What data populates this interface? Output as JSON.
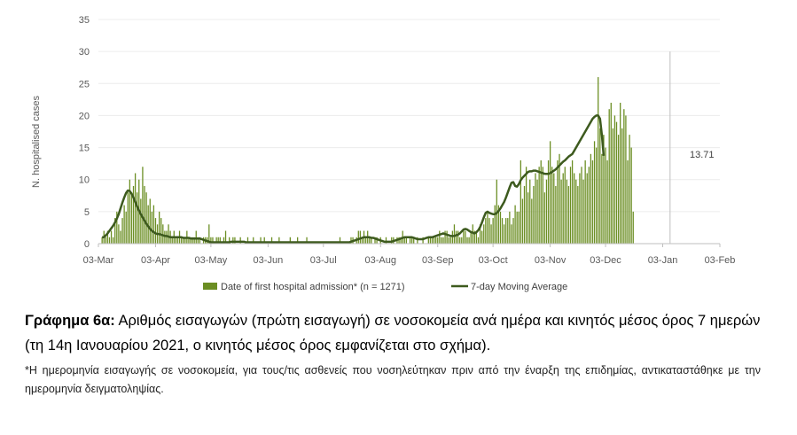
{
  "chart_data": {
    "type": "bar+line",
    "ylabel": "N. hospitalised cases",
    "ylim": [
      0,
      35
    ],
    "yticks": [
      0,
      5,
      10,
      15,
      20,
      25,
      30,
      35
    ],
    "x_start": "2020-03-03",
    "x_end": "2021-02-03",
    "xticks": [
      {
        "date": "2020-03-03",
        "label": "03-Mar"
      },
      {
        "date": "2020-04-03",
        "label": "03-Apr"
      },
      {
        "date": "2020-05-03",
        "label": "03-May"
      },
      {
        "date": "2020-06-03",
        "label": "03-Jun"
      },
      {
        "date": "2020-07-03",
        "label": "03-Jul"
      },
      {
        "date": "2020-08-03",
        "label": "03-Aug"
      },
      {
        "date": "2020-09-03",
        "label": "03-Sep"
      },
      {
        "date": "2020-10-03",
        "label": "03-Oct"
      },
      {
        "date": "2020-11-03",
        "label": "03-Nov"
      },
      {
        "date": "2020-12-03",
        "label": "03-Dec"
      },
      {
        "date": "2021-01-03",
        "label": "03-Jan"
      },
      {
        "date": "2021-02-03",
        "label": "03-Feb"
      }
    ],
    "vline_date": "2021-01-07",
    "bar_series_name": "Date of first hospital admission* (n = 1271)",
    "line_series_name": "7-day Moving Average",
    "moving_average_label": "13.71",
    "colors": {
      "bar": "#6b8e23",
      "line": "#3d5a1e",
      "vline": "#bfbfbf",
      "axis": "#bfbfbf"
    },
    "bars_start_date": "2020-03-05",
    "bars": [
      1,
      2,
      1,
      2,
      1,
      2,
      1,
      4,
      5,
      3,
      2,
      4,
      6,
      5,
      8,
      10,
      8,
      9,
      11,
      8,
      10,
      7,
      12,
      9,
      8,
      6,
      7,
      5,
      6,
      4,
      3,
      5,
      4,
      3,
      2,
      2,
      3,
      2,
      1,
      2,
      1,
      1,
      2,
      1,
      1,
      1,
      2,
      1,
      1,
      1,
      1,
      2,
      1,
      1,
      0,
      1,
      1,
      1,
      3,
      1,
      1,
      0,
      1,
      1,
      1,
      0,
      1,
      2,
      0,
      1,
      0,
      1,
      1,
      0,
      0,
      1,
      0,
      0,
      0,
      1,
      0,
      0,
      1,
      0,
      0,
      0,
      1,
      0,
      1,
      0,
      0,
      0,
      1,
      0,
      0,
      0,
      1,
      0,
      0,
      0,
      0,
      0,
      1,
      0,
      0,
      0,
      1,
      0,
      0,
      0,
      0,
      1,
      0,
      0,
      0,
      0,
      0,
      0,
      0,
      0,
      0,
      0,
      0,
      0,
      0,
      0,
      0,
      0,
      0,
      1,
      0,
      0,
      0,
      0,
      0,
      1,
      1,
      0,
      1,
      2,
      2,
      1,
      2,
      1,
      2,
      1,
      1,
      0,
      1,
      1,
      0,
      1,
      0,
      0,
      1,
      0,
      0,
      1,
      1,
      0,
      1,
      1,
      1,
      2,
      1,
      1,
      0,
      1,
      1,
      1,
      0,
      1,
      0,
      0,
      1,
      0,
      0,
      1,
      1,
      1,
      1,
      1,
      1,
      2,
      1,
      1,
      2,
      2,
      1,
      1,
      2,
      3,
      2,
      2,
      1,
      1,
      2,
      2,
      1,
      1,
      2,
      3,
      2,
      2,
      1,
      3,
      2,
      3,
      4,
      5,
      4,
      3,
      4,
      6,
      10,
      6,
      5,
      4,
      3,
      4,
      4,
      5,
      3,
      4,
      6,
      5,
      5,
      13,
      7,
      9,
      12,
      8,
      10,
      7,
      9,
      11,
      10,
      12,
      13,
      12,
      8,
      10,
      13,
      16,
      12,
      11,
      9,
      13,
      14,
      10,
      11,
      12,
      10,
      9,
      12,
      13,
      11,
      10,
      9,
      11,
      12,
      10,
      13,
      11,
      12,
      14,
      13,
      16,
      15,
      26,
      18,
      14,
      17,
      15,
      13,
      21,
      22,
      18,
      20,
      19,
      17,
      22,
      18,
      21,
      20,
      13,
      17,
      15,
      5
    ],
    "moving_average": [
      1,
      1,
      1.3,
      1.6,
      2,
      2.4,
      2.8,
      3.3,
      3.9,
      4.6,
      5.5,
      6.4,
      7.2,
      7.9,
      8.3,
      8.2,
      7.8,
      7.2,
      6.5,
      5.8,
      5.2,
      4.6,
      4.1,
      3.6,
      3.1,
      2.7,
      2.3,
      2,
      1.8,
      1.6,
      1.5,
      1.5,
      1.4,
      1.3,
      1.2,
      1.2,
      1.1,
      1,
      1,
      1,
      1,
      1,
      1,
      1,
      0.9,
      0.9,
      0.9,
      0.9,
      0.8,
      0.8,
      0.8,
      0.8,
      0.8,
      0.8,
      0.7,
      0.6,
      0.5,
      0.4,
      0.3,
      0.2,
      0.2,
      0.2,
      0.2,
      0.2,
      0.2,
      0.2,
      0.2,
      0.2,
      0.2,
      0.2,
      0.3,
      0.3,
      0.3,
      0.3,
      0.3,
      0.3,
      0.3,
      0.3,
      0.2,
      0.2,
      0.2,
      0.2,
      0.2,
      0.2,
      0.2,
      0.2,
      0.2,
      0.2,
      0.2,
      0.2,
      0.2,
      0.2,
      0.2,
      0.2,
      0.2,
      0.2,
      0.2,
      0.2,
      0.2,
      0.2,
      0.2,
      0.2,
      0.2,
      0.2,
      0.2,
      0.2,
      0.2,
      0.2,
      0.2,
      0.2,
      0.2,
      0.2,
      0.2,
      0.2,
      0.2,
      0.2,
      0.2,
      0.2,
      0.2,
      0.2,
      0.2,
      0.2,
      0.2,
      0.2,
      0.2,
      0.2,
      0.2,
      0.2,
      0.2,
      0.2,
      0.2,
      0.2,
      0.2,
      0.2,
      0.2,
      0.3,
      0.4,
      0.5,
      0.6,
      0.7,
      0.8,
      0.9,
      1,
      1,
      1,
      1,
      0.9,
      0.9,
      0.8,
      0.7,
      0.6,
      0.5,
      0.4,
      0.3,
      0.3,
      0.3,
      0.3,
      0.3,
      0.4,
      0.5,
      0.6,
      0.7,
      0.8,
      0.9,
      1,
      1,
      1,
      1,
      1,
      0.9,
      0.8,
      0.7,
      0.7,
      0.7,
      0.7,
      0.8,
      0.9,
      1,
      1,
      1,
      1.1,
      1.2,
      1.3,
      1.4,
      1.5,
      1.6,
      1.5,
      1.4,
      1.3,
      1.2,
      1.2,
      1.2,
      1.3,
      1.4,
      1.6,
      1.9,
      2.2,
      2.3,
      2.2,
      2,
      1.8,
      1.7,
      1.6,
      1.8,
      2.1,
      2.6,
      3.3,
      4.1,
      4.8,
      5,
      4.8,
      4.7,
      4.6,
      4.6,
      4.8,
      5.1,
      5.5,
      6,
      6.5,
      7.2,
      8,
      8.8,
      9.5,
      9.6,
      9,
      8.9,
      9.3,
      9.9,
      10.3,
      10.6,
      10.9,
      11.2,
      11.3,
      11.3,
      11.4,
      11.4,
      11.3,
      11.2,
      11.1,
      11,
      10.9,
      10.9,
      10.9,
      11,
      11.2,
      11.4,
      11.6,
      11.9,
      12.2,
      12.5,
      12.8,
      13,
      13.3,
      13.6,
      13.8,
      14,
      14.5,
      15,
      15.5,
      16,
      16.5,
      17,
      17.5,
      18,
      18.5,
      19,
      19.5,
      19.8,
      20,
      20,
      19.5,
      17,
      13.71
    ]
  },
  "caption": {
    "title_bold": "Γράφημα 6α:",
    "title_rest": " Αριθμός εισαγωγών (πρώτη εισαγωγή) σε νοσοκομεία ανά ημέρα και κινητός μέσος όρος 7 ημερών (τη 14η Ιανουαρίου 2021, ο κινητός μέσος όρος εμφανίζεται στο σχήμα).",
    "note": "*Η ημερομηνία εισαγωγής σε νοσοκομεία, για τους/τις ασθενείς που νοσηλεύτηκαν πριν από την έναρξη της επιδημίας, αντικαταστάθηκε με την ημερομηνία δειγματοληψίας."
  }
}
